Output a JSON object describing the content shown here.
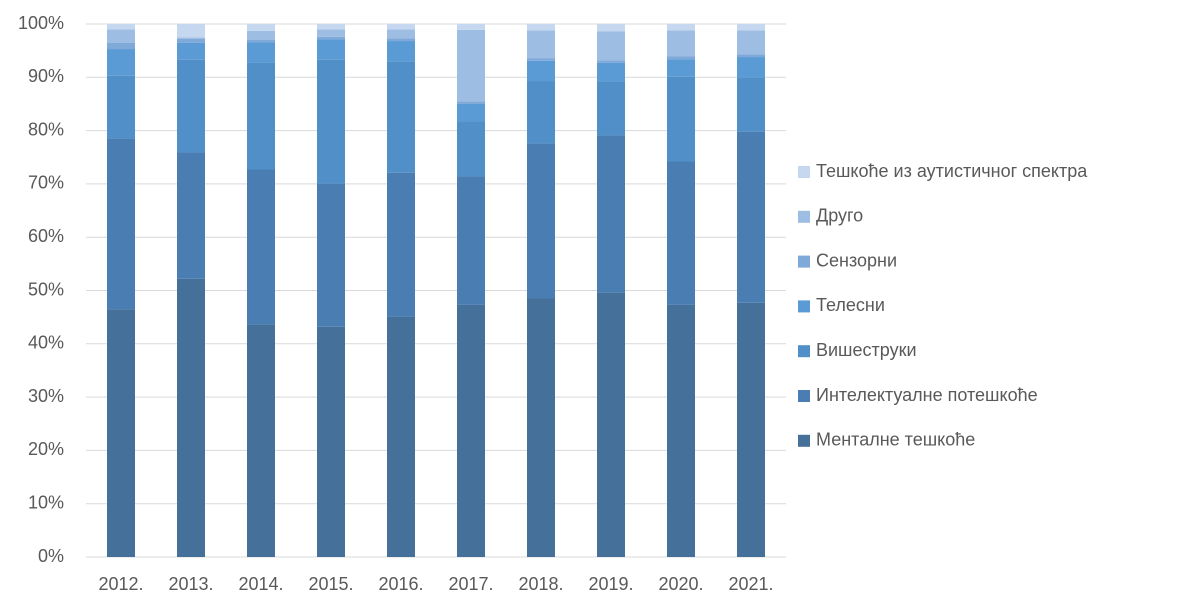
{
  "chart_data": {
    "type": "stacked_bar",
    "categories": [
      "2012.",
      "2013.",
      "2014.",
      "2015.",
      "2016.",
      "2017.",
      "2018.",
      "2019.",
      "2020.",
      "2021."
    ],
    "series": [
      {
        "name": "Менталне тешкоће",
        "color": "#44709a",
        "values": [
          46.5,
          52.2,
          43.6,
          43.2,
          45.1,
          47.3,
          48.5,
          49.6,
          47.3,
          47.7
        ]
      },
      {
        "name": "Интелектуалне потешкоће",
        "color": "#4a7eb3",
        "values": [
          32,
          23.7,
          29.1,
          26.9,
          27,
          24.1,
          29.1,
          29.5,
          26.9,
          32.1
        ]
      },
      {
        "name": "Вишеструки",
        "color": "#508fc7",
        "values": [
          11.8,
          17.4,
          20.1,
          23.2,
          20.9,
          10.3,
          11.7,
          10.1,
          15.9,
          10.2
        ]
      },
      {
        "name": "Телесни",
        "color": "#5b9bd5",
        "values": [
          5,
          3.2,
          3.8,
          3.8,
          3.8,
          3.3,
          3.8,
          3.5,
          3.3,
          3.8
        ]
      },
      {
        "name": "Сензорни",
        "color": "#7fa9d9",
        "values": [
          1.2,
          0.7,
          0.4,
          0.5,
          0.5,
          0.5,
          0.5,
          0.5,
          0.5,
          0.5
        ]
      },
      {
        "name": "Друго",
        "color": "#9dbde3",
        "values": [
          2.5,
          0.3,
          1.7,
          1.4,
          1.7,
          13.4,
          5.2,
          5.4,
          4.9,
          4.5
        ]
      },
      {
        "name": "Тешкоће из аутистичног спектра",
        "color": "#c5d8ef",
        "values": [
          1,
          2.5,
          1.3,
          1,
          1,
          1.1,
          1.2,
          1.4,
          1.2,
          1.2
        ]
      }
    ],
    "ylim": [
      0,
      100
    ],
    "yticks": [
      {
        "value": 0,
        "label": "0%"
      },
      {
        "value": 10,
        "label": "10%"
      },
      {
        "value": 20,
        "label": "20%"
      },
      {
        "value": 30,
        "label": "30%"
      },
      {
        "value": 40,
        "label": "40%"
      },
      {
        "value": 50,
        "label": "50%"
      },
      {
        "value": 60,
        "label": "60%"
      },
      {
        "value": 70,
        "label": "70%"
      },
      {
        "value": 80,
        "label": "80%"
      },
      {
        "value": 90,
        "label": "90%"
      },
      {
        "value": 100,
        "label": "100%"
      }
    ],
    "grid": true,
    "legend": "right"
  }
}
